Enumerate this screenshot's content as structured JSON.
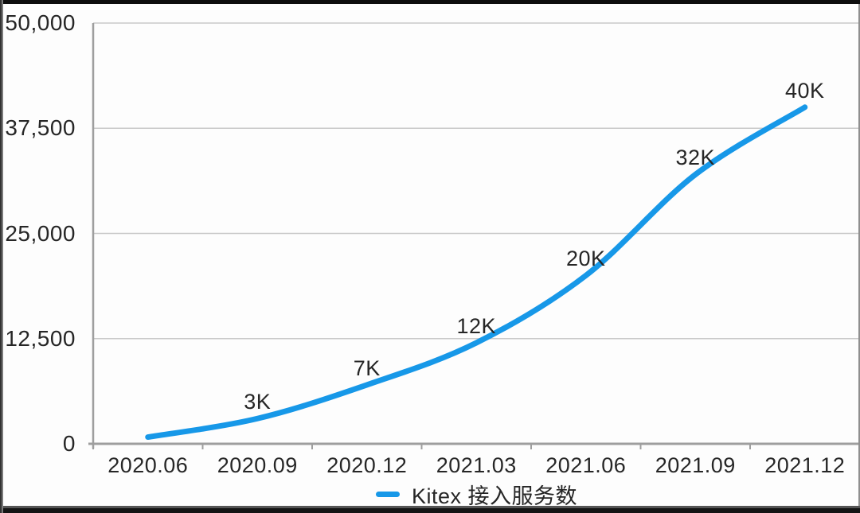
{
  "frame": {
    "background": "#fdfdfd",
    "top_bar_color": "#0d0d0d",
    "bottom_bar_gradient_top": "#555555",
    "bottom_bar_gradient_bottom": "#141414",
    "left_edge_outer": "#333333",
    "left_edge_inner": "#7a7a7a",
    "right_edge_color": "#8f8f8f"
  },
  "colors": {
    "line_blue": "#1798e8",
    "gridline": "#c9c9c9",
    "axis": "#9e9e9e",
    "text": "#262626"
  },
  "legend": {
    "label": "Kitex 接入服务数",
    "marker": "line-dash",
    "marker_color": "#1798e8"
  },
  "chart_data": {
    "type": "line",
    "title": "",
    "xlabel": "",
    "ylabel": "",
    "categories": [
      "2020.06",
      "2020.09",
      "2020.12",
      "2021.03",
      "2021.06",
      "2021.09",
      "2021.12"
    ],
    "series": [
      {
        "name": "Kitex 接入服务数",
        "color": "#1798e8",
        "values": [
          800,
          3000,
          7000,
          12000,
          20000,
          32000,
          40000
        ],
        "point_labels": [
          "",
          "3K",
          "7K",
          "12K",
          "20K",
          "32K",
          "40K"
        ]
      }
    ],
    "ylim": [
      0,
      50000
    ],
    "y_ticks": [
      {
        "value": 50000,
        "label": "50,000"
      },
      {
        "value": 37500,
        "label": "37,500"
      },
      {
        "value": 25000,
        "label": "25,000"
      },
      {
        "value": 12500,
        "label": "12,500"
      },
      {
        "value": 0,
        "label": "0"
      }
    ],
    "grid": "horizontal-only",
    "line_smoothing": true,
    "legend_position": "bottom-center"
  }
}
